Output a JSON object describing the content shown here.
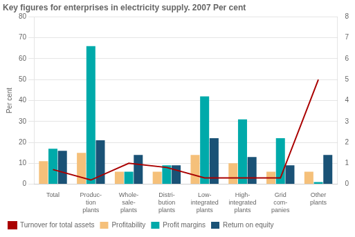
{
  "chart_data": {
    "type": "bar",
    "title": "Key figures for enterprises in electricity supply. 2007 Per cent",
    "ylabel": "Per cent",
    "categories": [
      "Total",
      "Produc-\ntion\nplants",
      "Whole-\nsale-\nplants",
      "Distri-\nbution\nplants",
      "Low-\nintegrated\nplants",
      "High-\nintegrated\nplants",
      "Grid\ncom-\npanies",
      "Other\nplants"
    ],
    "series": [
      {
        "name": "Profitability",
        "color": "#f5c07a",
        "values": [
          11,
          15,
          6,
          6,
          14,
          10,
          6,
          6
        ]
      },
      {
        "name": "Profit margins",
        "color": "#00aaaa",
        "values": [
          17,
          66,
          6,
          9,
          42,
          31,
          22,
          1
        ]
      },
      {
        "name": "Return on equity",
        "color": "#1a5276",
        "values": [
          16,
          21,
          14,
          9,
          22,
          13,
          9,
          14
        ]
      },
      {
        "name": "Turnover for total assets",
        "color": "#aa0000",
        "type": "line",
        "axis": "y2",
        "values": [
          0.7,
          0.2,
          1.0,
          0.8,
          0.3,
          0.3,
          0.3,
          5.0
        ]
      }
    ],
    "ylim": [
      0,
      80
    ],
    "yticks": [
      0,
      10,
      20,
      30,
      40,
      50,
      60,
      70,
      80
    ],
    "y2lim": [
      0,
      8
    ],
    "y2ticks": [
      0,
      1,
      2,
      3,
      4,
      5,
      6,
      7,
      8
    ],
    "grid": true,
    "legend": "lower left"
  }
}
